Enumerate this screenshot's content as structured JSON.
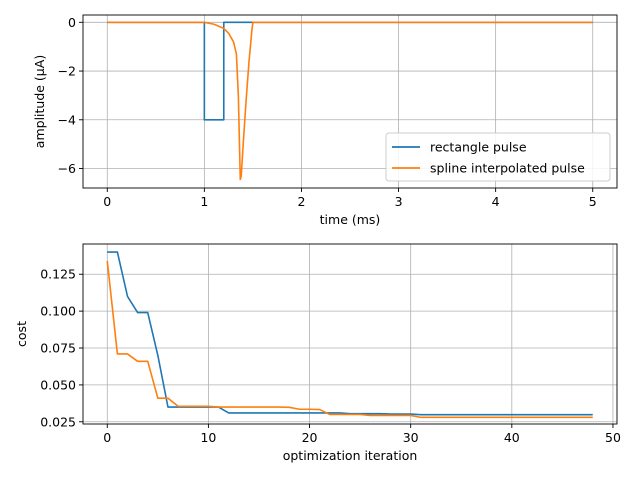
{
  "chart_data": [
    {
      "type": "line",
      "xlabel": "time (ms)",
      "ylabel": "amplitude (µA)",
      "xlim": [
        -0.25,
        5.25
      ],
      "ylim": [
        -6.8,
        0.3
      ],
      "xticks": [
        0,
        1,
        2,
        3,
        4,
        5
      ],
      "yticks": [
        0,
        -2,
        -4,
        -6
      ],
      "grid": true,
      "legend_position": "lower-right",
      "series": [
        {
          "name": "rectangle pulse",
          "color": "#1f77b4",
          "x": [
            0,
            1.0,
            1.0,
            1.2,
            1.2,
            5
          ],
          "y": [
            0,
            0,
            -4,
            -4,
            0,
            0
          ]
        },
        {
          "name": "spline interpolated pulse",
          "color": "#ff7f0e",
          "x": [
            0,
            1.0,
            1.1,
            1.2,
            1.25,
            1.3,
            1.33,
            1.35,
            1.37,
            1.38,
            1.4,
            1.43,
            1.46,
            1.49,
            1.5,
            5
          ],
          "y": [
            0,
            0,
            -0.08,
            -0.25,
            -0.45,
            -0.8,
            -1.3,
            -3.0,
            -6.45,
            -6.3,
            -5.0,
            -3.2,
            -1.6,
            -0.3,
            0,
            0
          ]
        }
      ]
    },
    {
      "type": "line",
      "xlabel": "optimization iteration",
      "ylabel": "cost",
      "xlim": [
        -2.4,
        50.4
      ],
      "ylim": [
        0.0235,
        0.1455
      ],
      "xticks": [
        0,
        10,
        20,
        30,
        40,
        50
      ],
      "yticks": [
        0.025,
        0.05,
        0.075,
        0.1,
        0.125
      ],
      "ytick_labels": [
        "0.025",
        "0.050",
        "0.075",
        "0.100",
        "0.125"
      ],
      "grid": true,
      "series": [
        {
          "name": "rectangle pulse",
          "color": "#1f77b4",
          "x": [
            0,
            1,
            2,
            3,
            4,
            5,
            6,
            7,
            8,
            9,
            10,
            11,
            12,
            13,
            14,
            15,
            16,
            17,
            18,
            19,
            20,
            21,
            22,
            23,
            24,
            25,
            26,
            27,
            28,
            29,
            30,
            31,
            32,
            33,
            34,
            35,
            36,
            37,
            38,
            39,
            40,
            41,
            42,
            43,
            44,
            45,
            46,
            47,
            48
          ],
          "y": [
            0.14,
            0.14,
            0.11,
            0.099,
            0.099,
            0.07,
            0.035,
            0.035,
            0.035,
            0.035,
            0.035,
            0.035,
            0.031,
            0.031,
            0.031,
            0.031,
            0.031,
            0.031,
            0.031,
            0.031,
            0.031,
            0.031,
            0.031,
            0.031,
            0.0305,
            0.0305,
            0.0305,
            0.0305,
            0.0302,
            0.0302,
            0.0302,
            0.0298,
            0.0298,
            0.0298,
            0.0298,
            0.0298,
            0.0298,
            0.0298,
            0.0298,
            0.0298,
            0.0298,
            0.0298,
            0.0298,
            0.0298,
            0.0298,
            0.0298,
            0.0298,
            0.0298,
            0.0298
          ]
        },
        {
          "name": "spline interpolated pulse",
          "color": "#ff7f0e",
          "x": [
            0,
            1,
            2,
            3,
            4,
            5,
            6,
            7,
            8,
            9,
            10,
            11,
            12,
            13,
            14,
            15,
            16,
            17,
            18,
            19,
            20,
            21,
            22,
            23,
            24,
            25,
            26,
            27,
            28,
            29,
            30,
            31,
            32,
            33,
            34,
            35,
            36,
            37,
            38,
            39,
            40,
            41,
            42,
            43,
            44,
            45,
            46,
            47,
            48
          ],
          "y": [
            0.134,
            0.071,
            0.071,
            0.066,
            0.066,
            0.041,
            0.041,
            0.0355,
            0.0355,
            0.0355,
            0.0355,
            0.035,
            0.035,
            0.035,
            0.035,
            0.035,
            0.035,
            0.035,
            0.0348,
            0.0335,
            0.0335,
            0.0333,
            0.03,
            0.03,
            0.03,
            0.03,
            0.0293,
            0.0293,
            0.0293,
            0.0293,
            0.0293,
            0.028,
            0.028,
            0.028,
            0.028,
            0.028,
            0.028,
            0.028,
            0.028,
            0.028,
            0.028,
            0.028,
            0.028,
            0.028,
            0.028,
            0.028,
            0.028,
            0.028,
            0.028
          ]
        }
      ]
    }
  ]
}
